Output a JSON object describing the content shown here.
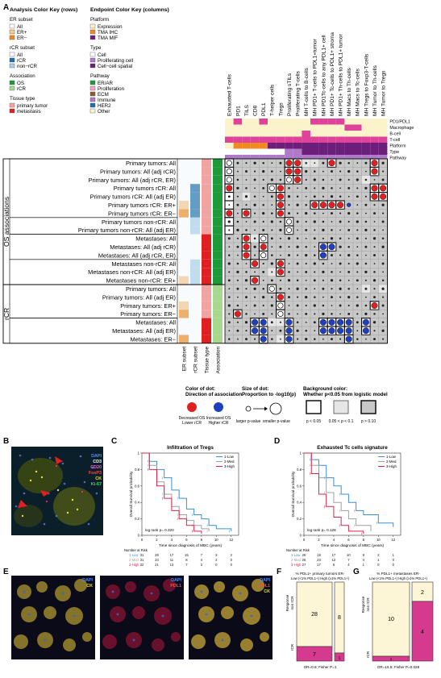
{
  "panel_labels": {
    "a": "A",
    "b": "B",
    "c": "C",
    "d": "D",
    "e": "E",
    "f": "F",
    "g": "G"
  },
  "colors": {
    "er_all": "#ffffff",
    "er_pos": "#f7c78c",
    "er_neg": "#f08a1f",
    "rcr_all": "#ffffff",
    "rcr_rcr": "#1d6fa8",
    "rcr_non": "#a9cfe8",
    "assoc_os": "#1f9a3a",
    "assoc_rcr": "#a8d88e",
    "tissue_primary": "#f4a3a3",
    "tissue_meta": "#e02020",
    "plat_expr": "#fbf3c9",
    "plat_ihc": "#f08a1f",
    "plat_mif": "#6b1f7a",
    "type_cell": "#ffffff",
    "type_prolif": "#b07ac9",
    "type_spatial": "#6b1f7a",
    "path_erar": "#1f9a3a",
    "path_prolif": "#f4a6c8",
    "path_ecm": "#8c5a2b",
    "path_immune": "#b07ac9",
    "path_her2": "#1d6fa8",
    "path_other": "#fbf3c9",
    "dot_red": "#e02020",
    "dot_blue": "#1f3fbf",
    "grid_bg": "#c8c8c8",
    "km_low": "#3a8fd8",
    "km_med": "#a0a0a0",
    "km_high": "#e0224a",
    "mosaic_yellow": "#fcf5d6",
    "mosaic_magenta": "#d63a8f"
  },
  "analysis_key": {
    "title": "Analysis Color Key (rows)",
    "er_heading": "ER subset",
    "er_items": [
      "All",
      "ER+",
      "ER−"
    ],
    "rcr_heading": "rCR subset",
    "rcr_items": [
      "All",
      "rCR",
      "non−rCR"
    ],
    "assoc_heading": "Association",
    "assoc_items": [
      "OS",
      "rCR"
    ],
    "tissue_heading": "Tissue type",
    "tissue_items": [
      "primary tumor",
      "metastasis"
    ]
  },
  "endpoint_key": {
    "title": "Endpoint Color Key (columns)",
    "platform_heading": "Platform",
    "platform_items": [
      "Expression",
      "TMA IHC",
      "TMA MIF"
    ],
    "type_heading": "Type",
    "type_items": [
      "Cell",
      "Proliferating cell",
      "Cell−cell spatial"
    ],
    "pathway_heading": "Pathway",
    "pathway_items": [
      "ER/AR",
      "Proliferation",
      "ECM",
      "Immune",
      "HER2",
      "Other"
    ]
  },
  "columns": [
    "Exhausted T-cells",
    "PD1",
    "TILS",
    "CD8",
    "PDL1",
    "T-helper cells",
    "Tregs",
    "Proliferating sTILs",
    "Proliferating T-cells",
    "MH T-cells to B-cells",
    "MH PD1+ T-cells to PDL1+tumor",
    "MH PD1Tc-cells to any PDL1+ cell",
    "MH PD1+ Tc-cells to PDL1+ stroma",
    "MH PD1+ Th-cells to PDL1+ tumor",
    "MH Macs to Th-cells",
    "MH Macs to Tc-cells",
    "MH Tregs to Foxp3-T-cells",
    "MH Tumor to Th-cells",
    "MH Tumor to Tregs"
  ],
  "top_track_labels": [
    "PD1/PDL1",
    "Macrophage",
    "B-cell",
    "T-cell",
    "Platform",
    "Type",
    "Pathway"
  ],
  "row_groups": [
    {
      "label": "OS associations",
      "rows": [
        "Primary tumors: All",
        "Primary tumors: All (adj rCR)",
        "Primary tumors: All (adj rCR, ER)",
        "Primary tumors rCR: All",
        "Primary tumors rCR: All (adj ER)",
        "Primary tumors rCR: ER+",
        "Primary tumors rCR: ER−",
        "Primary tumors non-rCR: All",
        "Primary tumors non-rCR: All (adj ER)",
        "Metastases: All",
        "Metastases: All (adj rCR)",
        "Metastases: All (adj rCR, ER)",
        "Metastases non-rCR: All",
        "Metastases non-rCR: All (adj ER)",
        "Metastases non-rCR: ER+"
      ]
    },
    {
      "label": "rCR",
      "rows": [
        "Primary tumors: All",
        "Primary tumors: All (adj ER)",
        "Primary tumors: ER+",
        "Primary tumors: ER−",
        "Metastases: All",
        "Metastases: All (adj ER)",
        "Metastases: ER−"
      ]
    }
  ],
  "bottom_track_labels": [
    "ER subset",
    "rCR subset",
    "Tissue type",
    "Association"
  ],
  "legend": {
    "color_title": "Color of dot:",
    "color_sub": "Direction of association",
    "red_label_1": "Decreased OS",
    "red_label_2": "Lower rCR",
    "blue_label_1": "Increased OS",
    "blue_label_2": "Higher rCR",
    "size_title": "Size of dot:",
    "size_sub": "Proportion to -log10(p)",
    "size_small": "larger p-value",
    "size_large": "smaller p-value",
    "bg_title": "Background color:",
    "bg_sub": "Whether p<0.05 from logistic model",
    "bg_1": "p < 0.05",
    "bg_2": "0.05 < p < 0.1",
    "bg_3": "p > 0.10"
  },
  "panel_b": {
    "markers": [
      "DAPI",
      "CD3",
      "CD20",
      "FoxP3",
      "CK",
      "Ki-67"
    ]
  },
  "panel_c": {
    "title": "Infiltration of Tregs",
    "ylabel": "Overall Survival probability",
    "xlabel": "Time since diagnosis of MBC (years)",
    "logrank": "log rank p= 0.320",
    "legend": [
      "1-Low",
      "2-Med",
      "3-High"
    ],
    "risk_title": "Number at Risk",
    "risk_rows": [
      [
        "1-Low",
        "31",
        "28",
        "17",
        "15",
        "7",
        "3",
        "2"
      ],
      [
        "2-Med",
        "31",
        "24",
        "11",
        "8",
        "4",
        "2",
        "0"
      ],
      [
        "3-High",
        "32",
        "21",
        "13",
        "7",
        "3",
        "0",
        "0"
      ]
    ]
  },
  "panel_d": {
    "title": "Exhausted Tc cells signature",
    "ylabel": "Overall Survival probability",
    "xlabel": "Time since diagnosis of MBC (years)",
    "logrank": "log rank p= 0.128",
    "legend": [
      "1-Low",
      "2-Med",
      "3-High"
    ],
    "risk_title": "Number at Risk",
    "risk_rows": [
      [
        "1-Low",
        "26",
        "19",
        "17",
        "10",
        "8",
        "2",
        "1"
      ],
      [
        "2-Med",
        "26",
        "23",
        "12",
        "7",
        "4",
        "1",
        "0"
      ],
      [
        "3-High",
        "27",
        "17",
        "6",
        "4",
        "1",
        "0",
        "0"
      ]
    ]
  },
  "panel_e": {
    "img1": [
      "DAPI",
      "CK"
    ],
    "img2": [
      "DAPI",
      "PDL1"
    ],
    "img3": [
      "DAPI",
      "PDL1",
      "CK"
    ]
  },
  "panel_f": {
    "header": "% PDL1+ primary tumors ER-",
    "sub": "Low (<1% PDL1+) High (≥1% PDL1+)",
    "ylabel": "Response",
    "y_non": "non rCR",
    "y_rcr": "rCR",
    "cells": {
      "low_non": "28",
      "high_non": "8",
      "low_rcr": "7",
      "high_rcr": "1"
    },
    "footer": "OR=0.8; Fisher P=1"
  },
  "panel_g": {
    "header": "% PDL1+ metastases ER-",
    "sub": "Low (<1% PDL1+) High (≥1% PDL1+)",
    "ylabel": "Response",
    "y_non": "non rCR",
    "y_rcr": "rCR",
    "cells": {
      "low_non": "10",
      "high_non": "2",
      "low_rcr": "1",
      "high_rcr": "4"
    },
    "footer": "OR=15.5; Fisher P=0.028"
  },
  "chart_data": [
    {
      "type": "line",
      "title": "Infiltration of Tregs",
      "xlabel": "Time since diagnosis of MBC (years)",
      "ylabel": "Overall Survival probability",
      "xlim": [
        0,
        13
      ],
      "ylim": [
        0,
        1
      ],
      "series": [
        {
          "name": "1-Low",
          "x": [
            0,
            1,
            2,
            3,
            4,
            5,
            6,
            7,
            8,
            9,
            10,
            12
          ],
          "y": [
            1,
            0.9,
            0.8,
            0.7,
            0.55,
            0.45,
            0.32,
            0.25,
            0.2,
            0.12,
            0.08,
            0.05
          ]
        },
        {
          "name": "2-Med",
          "x": [
            0,
            1,
            2,
            3,
            4,
            5,
            6,
            7,
            8,
            9
          ],
          "y": [
            1,
            0.85,
            0.65,
            0.5,
            0.35,
            0.25,
            0.18,
            0.12,
            0.08,
            0.05
          ]
        },
        {
          "name": "3-High",
          "x": [
            0,
            1,
            2,
            3,
            4,
            5,
            6,
            7,
            8
          ],
          "y": [
            1,
            0.8,
            0.6,
            0.45,
            0.3,
            0.2,
            0.12,
            0.05,
            0.02
          ]
        }
      ]
    },
    {
      "type": "line",
      "title": "Exhausted Tc cells signature",
      "xlabel": "Time since diagnosis of MBC (years)",
      "ylabel": "Overall Survival probability",
      "xlim": [
        0,
        13
      ],
      "ylim": [
        0,
        1
      ],
      "series": [
        {
          "name": "1-Low",
          "x": [
            0,
            1,
            2,
            3,
            4,
            5,
            6,
            7,
            8,
            10,
            12
          ],
          "y": [
            1,
            0.92,
            0.85,
            0.7,
            0.6,
            0.5,
            0.4,
            0.3,
            0.25,
            0.15,
            0.1
          ]
        },
        {
          "name": "2-Med",
          "x": [
            0,
            1,
            2,
            3,
            4,
            5,
            6,
            7,
            9
          ],
          "y": [
            1,
            0.85,
            0.7,
            0.52,
            0.4,
            0.3,
            0.2,
            0.12,
            0.05
          ]
        },
        {
          "name": "3-High",
          "x": [
            0,
            1,
            2,
            3,
            4,
            5,
            6,
            8
          ],
          "y": [
            1,
            0.75,
            0.5,
            0.35,
            0.22,
            0.12,
            0.05,
            0.02
          ]
        }
      ]
    }
  ]
}
